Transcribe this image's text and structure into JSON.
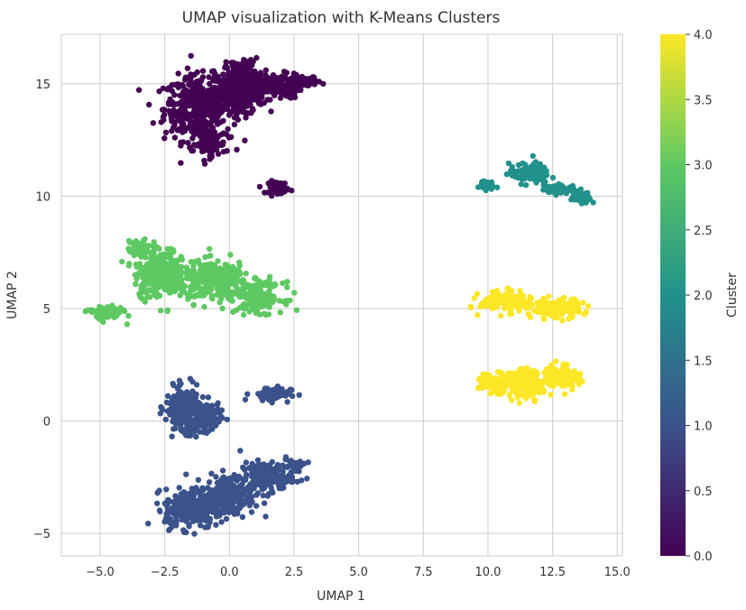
{
  "chart_data": {
    "type": "scatter",
    "title": "UMAP visualization with K-Means Clusters",
    "xlabel": "UMAP 1",
    "ylabel": "UMAP 2",
    "xlim": [
      -6.5,
      15.2
    ],
    "ylim": [
      -6.0,
      17.2
    ],
    "xticks": [
      -5.0,
      -2.5,
      0.0,
      2.5,
      5.0,
      7.5,
      10.0,
      12.5,
      15.0
    ],
    "xtick_labels": [
      "−5.0",
      "−2.5",
      "0.0",
      "2.5",
      "5.0",
      "7.5",
      "10.0",
      "12.5",
      "15.0"
    ],
    "yticks": [
      -5,
      0,
      5,
      10,
      15
    ],
    "ytick_labels": [
      "−5",
      "0",
      "5",
      "10",
      "15"
    ],
    "grid": true,
    "colorbar": {
      "label": "Cluster",
      "range": [
        0.0,
        4.0
      ],
      "ticks": [
        0.0,
        0.5,
        1.0,
        1.5,
        2.0,
        2.5,
        3.0,
        3.5,
        4.0
      ],
      "tick_labels": [
        "0.0",
        "0.5",
        "1.0",
        "1.5",
        "2.0",
        "2.5",
        "3.0",
        "3.5",
        "4.0"
      ],
      "colormap": "viridis",
      "colors": [
        "#440154",
        "#3b528b",
        "#21918c",
        "#5ec962",
        "#fde725"
      ]
    },
    "series": [
      {
        "cluster": 0,
        "color": "#440154",
        "blobs": [
          {
            "cx": -1.2,
            "cy": 13.9,
            "rx": 1.2,
            "ry": 1.3,
            "n": 420
          },
          {
            "cx": 0.3,
            "cy": 14.6,
            "rx": 1.0,
            "ry": 0.9,
            "n": 300
          },
          {
            "cx": 1.8,
            "cy": 14.9,
            "rx": 0.9,
            "ry": 0.5,
            "n": 140
          },
          {
            "cx": 3.0,
            "cy": 15.1,
            "rx": 0.5,
            "ry": 0.2,
            "n": 40
          },
          {
            "cx": 0.5,
            "cy": 15.7,
            "rx": 0.6,
            "ry": 0.4,
            "n": 60
          },
          {
            "cx": -0.8,
            "cy": 12.3,
            "rx": 0.6,
            "ry": 0.5,
            "n": 80
          },
          {
            "cx": 1.9,
            "cy": 10.4,
            "rx": 0.35,
            "ry": 0.25,
            "n": 60
          }
        ]
      },
      {
        "cluster": 1,
        "color": "#3b528b",
        "blobs": [
          {
            "cx": -1.8,
            "cy": 0.6,
            "rx": 0.6,
            "ry": 0.8,
            "n": 200
          },
          {
            "cx": -0.9,
            "cy": 0.2,
            "rx": 0.5,
            "ry": 0.6,
            "n": 120
          },
          {
            "cx": -1.6,
            "cy": -0.4,
            "rx": 0.3,
            "ry": 0.3,
            "n": 30
          },
          {
            "cx": 1.6,
            "cy": 1.2,
            "rx": 0.7,
            "ry": 0.3,
            "n": 70
          },
          {
            "cx": -1.5,
            "cy": -3.9,
            "rx": 0.9,
            "ry": 0.8,
            "n": 260
          },
          {
            "cx": 0.0,
            "cy": -3.3,
            "rx": 0.9,
            "ry": 0.8,
            "n": 220
          },
          {
            "cx": 1.4,
            "cy": -2.5,
            "rx": 0.9,
            "ry": 0.6,
            "n": 150
          },
          {
            "cx": 2.5,
            "cy": -2.0,
            "rx": 0.4,
            "ry": 0.4,
            "n": 40
          }
        ]
      },
      {
        "cluster": 2,
        "color": "#21918c",
        "blobs": [
          {
            "cx": 9.9,
            "cy": 10.5,
            "rx": 0.25,
            "ry": 0.2,
            "n": 40
          },
          {
            "cx": 11.6,
            "cy": 11.0,
            "rx": 0.7,
            "ry": 0.4,
            "n": 110
          },
          {
            "cx": 12.8,
            "cy": 10.3,
            "rx": 0.6,
            "ry": 0.2,
            "n": 60
          },
          {
            "cx": 13.7,
            "cy": 9.9,
            "rx": 0.4,
            "ry": 0.2,
            "n": 30
          }
        ]
      },
      {
        "cluster": 3,
        "color": "#5ec962",
        "blobs": [
          {
            "cx": -2.7,
            "cy": 6.6,
            "rx": 0.9,
            "ry": 1.0,
            "n": 280
          },
          {
            "cx": -0.5,
            "cy": 6.2,
            "rx": 1.2,
            "ry": 0.8,
            "n": 300
          },
          {
            "cx": 1.2,
            "cy": 5.5,
            "rx": 0.8,
            "ry": 0.6,
            "n": 150
          },
          {
            "cx": -4.8,
            "cy": 4.8,
            "rx": 0.6,
            "ry": 0.3,
            "n": 90
          },
          {
            "cx": -3.5,
            "cy": 7.7,
            "rx": 0.4,
            "ry": 0.3,
            "n": 40
          }
        ]
      },
      {
        "cluster": 4,
        "color": "#fde725",
        "blobs": [
          {
            "cx": 10.7,
            "cy": 5.3,
            "rx": 0.9,
            "ry": 0.4,
            "n": 150
          },
          {
            "cx": 12.6,
            "cy": 5.0,
            "rx": 0.9,
            "ry": 0.4,
            "n": 150
          },
          {
            "cx": 10.2,
            "cy": 1.7,
            "rx": 0.6,
            "ry": 0.4,
            "n": 80
          },
          {
            "cx": 11.5,
            "cy": 1.7,
            "rx": 0.8,
            "ry": 0.6,
            "n": 150
          },
          {
            "cx": 12.9,
            "cy": 2.0,
            "rx": 0.6,
            "ry": 0.5,
            "n": 90
          }
        ]
      }
    ]
  }
}
